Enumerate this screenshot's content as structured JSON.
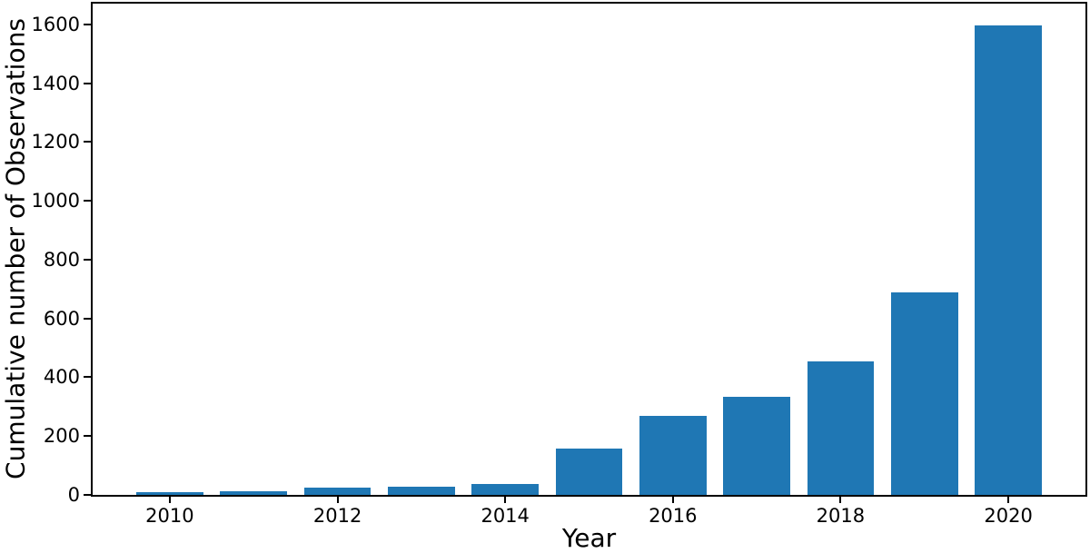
{
  "figure": {
    "background": "#ffffff",
    "text_color": "#000000"
  },
  "chart_data": {
    "type": "bar",
    "title": "",
    "xlabel": "Year",
    "ylabel": "Cumulative number of Observations",
    "x": [
      2010,
      2011,
      2012,
      2013,
      2014,
      2015,
      2016,
      2017,
      2018,
      2019,
      2020
    ],
    "values": [
      10,
      13,
      25,
      27,
      38,
      158,
      270,
      335,
      455,
      688,
      1595
    ],
    "bar_color": "#1f77b4",
    "bar_width": 0.8,
    "xlim": [
      2009.08,
      2020.92
    ],
    "ylim": [
      0,
      1670
    ],
    "xticks": [
      2010,
      2012,
      2014,
      2016,
      2018,
      2020
    ],
    "yticks": [
      0,
      200,
      400,
      600,
      800,
      1000,
      1200,
      1400,
      1600
    ],
    "grid": false,
    "legend": "none",
    "axis_color": "#000000"
  }
}
